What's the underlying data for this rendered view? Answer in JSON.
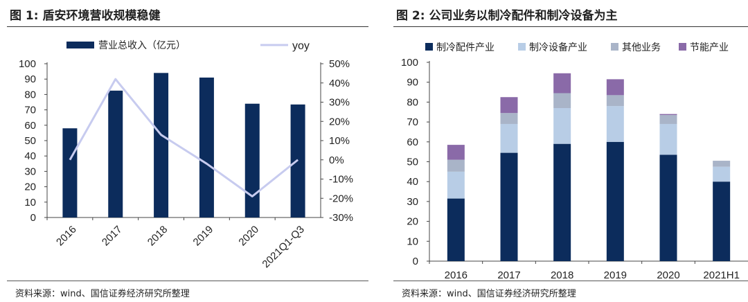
{
  "figure1": {
    "title": "图 1: 盾安环境营收规模稳健",
    "source": "资料来源：wind、国信证券经济研究所整理",
    "chart_data": {
      "type": "bar",
      "categories": [
        "2016",
        "2017",
        "2018",
        "2019",
        "2020",
        "2021Q1-Q3"
      ],
      "series": [
        {
          "name": "营业总收入（亿元）",
          "type": "bar",
          "axis": "left",
          "values": [
            58,
            82.5,
            94,
            91,
            74,
            73.5
          ],
          "color": "#0c2c5c"
        },
        {
          "name": "yoy",
          "type": "line",
          "axis": "right",
          "values": [
            0,
            42,
            13,
            -2,
            -19,
            0
          ],
          "color": "#c7cbef"
        }
      ],
      "y_left": {
        "min": 0,
        "max": 100,
        "step": 10,
        "ticks": [
          "0",
          "10",
          "20",
          "30",
          "40",
          "50",
          "60",
          "70",
          "80",
          "90",
          "100"
        ]
      },
      "y_right": {
        "min": -30,
        "max": 50,
        "step": 10,
        "ticks": [
          "-30%",
          "-20%",
          "-10%",
          "0%",
          "10%",
          "20%",
          "30%",
          "40%",
          "50%"
        ]
      },
      "legend": {
        "position": "top",
        "items": [
          "营业总收入（亿元）",
          "yoy"
        ]
      }
    }
  },
  "figure2": {
    "title": "图 2: 公司业务以制冷配件和制冷设备为主",
    "source": "资料来源：wind、国信证券经济研究所整理",
    "chart_data": {
      "type": "bar",
      "stacked": true,
      "categories": [
        "2016",
        "2017",
        "2018",
        "2019",
        "2020",
        "2021H1"
      ],
      "series": [
        {
          "name": "制冷配件产业",
          "values": [
            31.5,
            54.5,
            59,
            60,
            53.5,
            40
          ],
          "color": "#0c2c5c"
        },
        {
          "name": "制冷设备产业",
          "values": [
            13.5,
            14.5,
            18,
            18,
            15.5,
            7.5
          ],
          "color": "#b8cde6"
        },
        {
          "name": "其他业务",
          "values": [
            6,
            5.5,
            7.5,
            5.5,
            4.5,
            3
          ],
          "color": "#a9b4c8"
        },
        {
          "name": "节能产业",
          "values": [
            7.5,
            8,
            10,
            8,
            0.5,
            0
          ],
          "color": "#8a6aa8"
        }
      ],
      "y": {
        "min": 0,
        "max": 100,
        "step": 10,
        "ticks": [
          "0",
          "10",
          "20",
          "30",
          "40",
          "50",
          "60",
          "70",
          "80",
          "90",
          "100"
        ]
      },
      "legend": {
        "position": "top",
        "items": [
          "制冷配件产业",
          "制冷设备产业",
          "其他业务",
          "节能产业"
        ]
      }
    }
  }
}
